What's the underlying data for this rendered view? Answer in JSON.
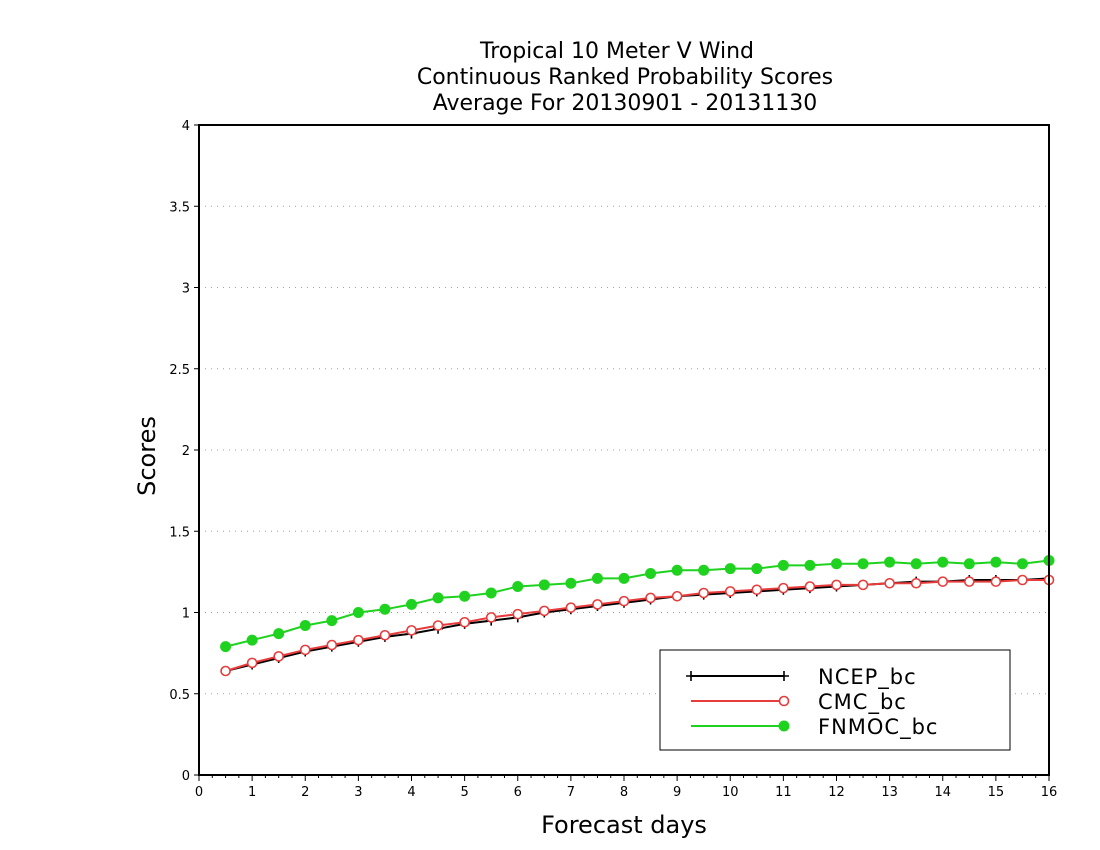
{
  "chart_data": {
    "type": "line",
    "title": [
      "Tropical 10 Meter V Wind",
      "Continuous Ranked Probability Scores",
      "Average For 20130901 - 20131130"
    ],
    "xlabel": "Forecast days",
    "ylabel": "Scores",
    "xlim": [
      0,
      16
    ],
    "ylim": [
      0,
      4
    ],
    "xticks": [
      "0",
      "1",
      "2",
      "3",
      "4",
      "5",
      "6",
      "7",
      "8",
      "9",
      "10",
      "11",
      "12",
      "13",
      "14",
      "15",
      "16"
    ],
    "yticks": [
      "0",
      "0.5",
      "1",
      "1.5",
      "2",
      "2.5",
      "3",
      "3.5",
      "4"
    ],
    "grid": "horizontal dotted",
    "legend_position": "bottom-right",
    "x": [
      0.5,
      1,
      1.5,
      2,
      2.5,
      3,
      3.5,
      4,
      4.5,
      5,
      5.5,
      6,
      6.5,
      7,
      7.5,
      8,
      8.5,
      9,
      9.5,
      10,
      10.5,
      11,
      11.5,
      12,
      12.5,
      13,
      13.5,
      14,
      14.5,
      15,
      15.5,
      16
    ],
    "series": [
      {
        "name": "NCEP_bc",
        "color": "#000000",
        "marker": "plus",
        "values": [
          0.64,
          0.68,
          0.72,
          0.76,
          0.79,
          0.82,
          0.85,
          0.87,
          0.9,
          0.93,
          0.95,
          0.97,
          1.0,
          1.02,
          1.04,
          1.06,
          1.08,
          1.1,
          1.11,
          1.12,
          1.13,
          1.14,
          1.15,
          1.16,
          1.17,
          1.18,
          1.19,
          1.19,
          1.2,
          1.2,
          1.2,
          1.21
        ]
      },
      {
        "name": "CMC_bc",
        "color": "#e83c3c",
        "marker": "open-circle",
        "values": [
          0.64,
          0.69,
          0.73,
          0.77,
          0.8,
          0.83,
          0.86,
          0.89,
          0.92,
          0.94,
          0.97,
          0.99,
          1.01,
          1.03,
          1.05,
          1.07,
          1.09,
          1.1,
          1.12,
          1.13,
          1.14,
          1.15,
          1.16,
          1.17,
          1.17,
          1.18,
          1.18,
          1.19,
          1.19,
          1.19,
          1.2,
          1.2
        ]
      },
      {
        "name": "FNMOC_bc",
        "color": "#1fd21f",
        "marker": "filled-circle",
        "values": [
          0.79,
          0.83,
          0.87,
          0.92,
          0.95,
          1.0,
          1.02,
          1.05,
          1.09,
          1.1,
          1.12,
          1.16,
          1.17,
          1.18,
          1.21,
          1.21,
          1.24,
          1.26,
          1.26,
          1.27,
          1.27,
          1.29,
          1.29,
          1.3,
          1.3,
          1.31,
          1.3,
          1.31,
          1.3,
          1.31,
          1.3,
          1.32
        ]
      }
    ]
  }
}
